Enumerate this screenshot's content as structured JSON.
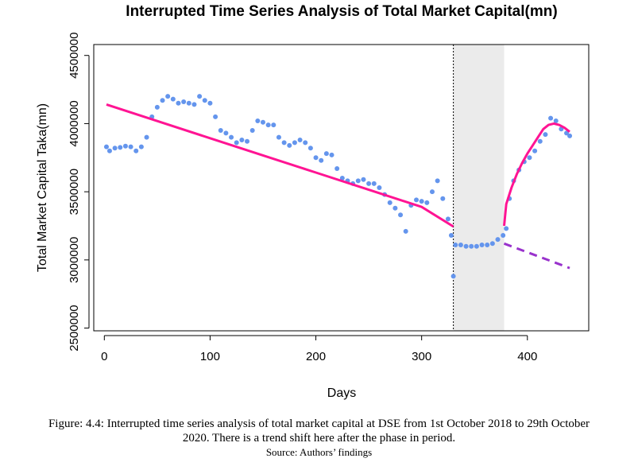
{
  "chart_data": {
    "type": "scatter",
    "title": "Interrupted Time Series Analysis of Total Market Capital(mn)",
    "xlabel": "Days",
    "ylabel": "Total Market Capital Taka(mn)",
    "xlim": [
      -10,
      458
    ],
    "ylim": [
      2480000,
      4580000
    ],
    "xticks": [
      0,
      100,
      200,
      300,
      400
    ],
    "yticks": [
      2500000,
      3000000,
      3500000,
      4000000,
      4500000
    ],
    "interruption_start": 330,
    "interruption_end": 378,
    "colors": {
      "observed": "#6495ED",
      "fitted": "#FF1493",
      "counterfactual": "#9932CC",
      "phase_in_shade": "#EBEBEB"
    },
    "series": [
      {
        "style": "points",
        "color": "#6495ED",
        "points": [
          [
            2,
            3830000
          ],
          [
            5,
            3800000
          ],
          [
            10,
            3820000
          ],
          [
            15,
            3825000
          ],
          [
            20,
            3835000
          ],
          [
            25,
            3830000
          ],
          [
            30,
            3800000
          ],
          [
            35,
            3830000
          ],
          [
            40,
            3900000
          ],
          [
            45,
            4050000
          ],
          [
            50,
            4120000
          ],
          [
            55,
            4170000
          ],
          [
            60,
            4200000
          ],
          [
            65,
            4180000
          ],
          [
            70,
            4150000
          ],
          [
            75,
            4160000
          ],
          [
            80,
            4150000
          ],
          [
            85,
            4140000
          ],
          [
            90,
            4200000
          ],
          [
            95,
            4170000
          ],
          [
            100,
            4150000
          ],
          [
            105,
            4050000
          ],
          [
            110,
            3950000
          ],
          [
            115,
            3930000
          ],
          [
            120,
            3900000
          ],
          [
            125,
            3860000
          ],
          [
            130,
            3880000
          ],
          [
            135,
            3870000
          ],
          [
            140,
            3950000
          ],
          [
            145,
            4020000
          ],
          [
            150,
            4010000
          ],
          [
            155,
            3990000
          ],
          [
            160,
            3990000
          ],
          [
            165,
            3900000
          ],
          [
            170,
            3860000
          ],
          [
            175,
            3840000
          ],
          [
            180,
            3860000
          ],
          [
            185,
            3880000
          ],
          [
            190,
            3860000
          ],
          [
            195,
            3820000
          ],
          [
            200,
            3750000
          ],
          [
            205,
            3730000
          ],
          [
            210,
            3780000
          ],
          [
            215,
            3770000
          ],
          [
            220,
            3670000
          ],
          [
            225,
            3600000
          ],
          [
            230,
            3580000
          ],
          [
            235,
            3560000
          ],
          [
            240,
            3580000
          ],
          [
            245,
            3590000
          ],
          [
            250,
            3560000
          ],
          [
            255,
            3560000
          ],
          [
            260,
            3530000
          ],
          [
            265,
            3480000
          ],
          [
            270,
            3420000
          ],
          [
            275,
            3380000
          ],
          [
            280,
            3330000
          ],
          [
            285,
            3210000
          ],
          [
            290,
            3400000
          ],
          [
            295,
            3440000
          ],
          [
            300,
            3430000
          ],
          [
            305,
            3420000
          ],
          [
            310,
            3500000
          ],
          [
            315,
            3580000
          ],
          [
            320,
            3450000
          ],
          [
            325,
            3300000
          ],
          [
            328,
            3180000
          ],
          [
            330,
            2880000
          ],
          [
            332,
            3110000
          ],
          [
            337,
            3110000
          ],
          [
            342,
            3100000
          ],
          [
            347,
            3100000
          ],
          [
            352,
            3100000
          ],
          [
            357,
            3110000
          ],
          [
            362,
            3110000
          ],
          [
            367,
            3120000
          ],
          [
            372,
            3150000
          ],
          [
            377,
            3180000
          ],
          [
            380,
            3230000
          ],
          [
            383,
            3450000
          ],
          [
            387,
            3580000
          ],
          [
            392,
            3660000
          ],
          [
            397,
            3720000
          ],
          [
            402,
            3750000
          ],
          [
            407,
            3800000
          ],
          [
            412,
            3870000
          ],
          [
            417,
            3920000
          ],
          [
            422,
            4040000
          ],
          [
            427,
            4020000
          ],
          [
            432,
            3960000
          ],
          [
            437,
            3930000
          ],
          [
            440,
            3910000
          ]
        ]
      },
      {
        "style": "line",
        "color": "#FF1493",
        "points": [
          [
            2,
            4140000
          ],
          [
            50,
            4019000
          ],
          [
            100,
            3893000
          ],
          [
            150,
            3767000
          ],
          [
            200,
            3641000
          ],
          [
            250,
            3515000
          ],
          [
            300,
            3389000
          ],
          [
            330,
            3245000
          ]
        ]
      },
      {
        "style": "line",
        "color": "#FF1493",
        "points": [
          [
            378,
            3250000
          ],
          [
            380,
            3410000
          ],
          [
            385,
            3530000
          ],
          [
            390,
            3630000
          ],
          [
            395,
            3710000
          ],
          [
            400,
            3780000
          ],
          [
            405,
            3840000
          ],
          [
            410,
            3900000
          ],
          [
            415,
            3960000
          ],
          [
            420,
            3990000
          ],
          [
            425,
            4000000
          ],
          [
            430,
            3990000
          ],
          [
            435,
            3970000
          ],
          [
            440,
            3940000
          ]
        ]
      },
      {
        "style": "dashed",
        "color": "#9932CC",
        "points": [
          [
            378,
            3120000
          ],
          [
            440,
            2940000
          ]
        ]
      }
    ]
  },
  "caption": {
    "line1": "Figure: 4.4: Interrupted time series analysis of total market capital at DSE from 1st October 2018 to 29th October",
    "line2": "2020. There is a trend shift here after the phase in period.",
    "source": "Source: Authors’ findings"
  }
}
